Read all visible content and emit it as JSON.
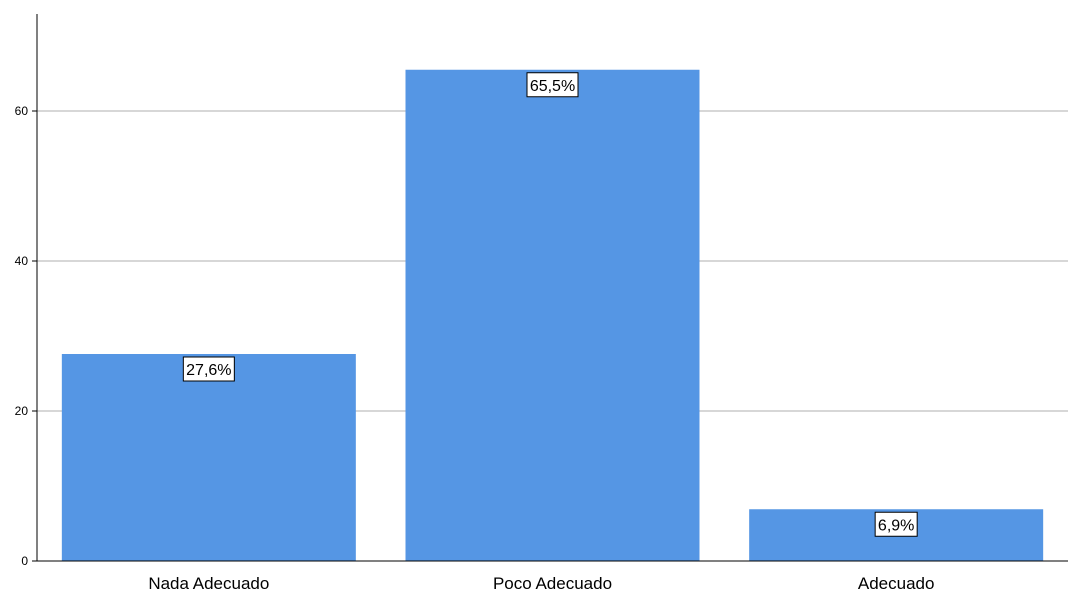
{
  "chart_data": {
    "type": "bar",
    "categories": [
      "Nada Adecuado",
      "Poco Adecuado",
      "Adecuado"
    ],
    "values": [
      27.6,
      65.5,
      6.9
    ],
    "data_labels": [
      "27,6%",
      "65,5%",
      "6,9%"
    ],
    "title": "",
    "xlabel": "",
    "ylabel": "",
    "ylim": [
      0,
      72
    ],
    "yticks": [
      0,
      20,
      40,
      60
    ],
    "ytick_labels": [
      "0",
      "20",
      "40",
      "60"
    ],
    "grid": true,
    "legend": "none"
  },
  "colors": {
    "bar": "#5596e4",
    "gridline": "#bfbfbf",
    "axis": "#000000",
    "label_box": "#ffffff"
  }
}
